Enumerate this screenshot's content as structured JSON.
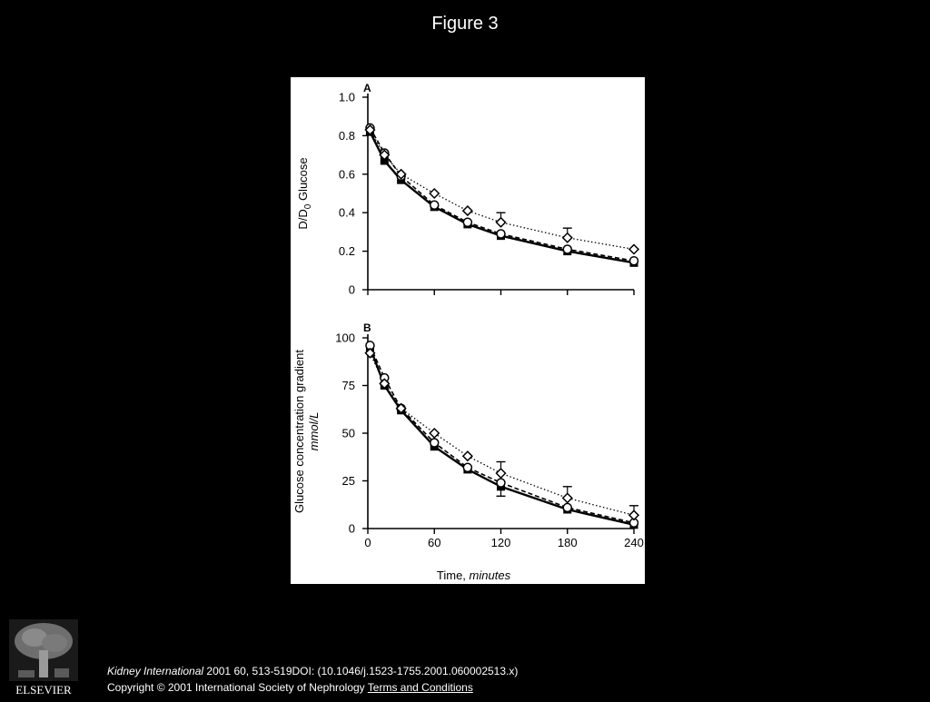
{
  "header": {
    "title": "Figure 3"
  },
  "footer": {
    "journal": "Kidney International",
    "citation_rest": " 2001 60, 513-519DOI: (10.1046/j.1523-1755.2001.060002513.x)",
    "copyright": "Copyright © 2001 International Society of Nephrology ",
    "terms_link": "Terms and Conditions",
    "publisher_logo_text": "ELSEVIER"
  },
  "colors": {
    "background": "#000000",
    "panel": "#ffffff",
    "ink": "#000000"
  },
  "chart_data": [
    {
      "type": "line",
      "panel_label": "A",
      "title": "",
      "xlabel": "",
      "ylabel": "D/D0 Glucose",
      "xlim": [
        0,
        240
      ],
      "ylim": [
        0,
        1.0
      ],
      "yticks": [
        "0",
        "0.2",
        "0.4",
        "0.6",
        "0.8",
        "1.0"
      ],
      "ytick_values": [
        0,
        0.2,
        0.4,
        0.6,
        0.8,
        1.0
      ],
      "xticks": [
        0,
        60,
        120,
        180,
        240
      ],
      "xtick_labels": [
        "",
        "",
        "",
        "",
        ""
      ],
      "grid": false,
      "x": [
        2,
        15,
        30,
        60,
        90,
        120,
        180,
        240
      ],
      "series": [
        {
          "style": "solid",
          "marker": "filled-square",
          "values": [
            0.82,
            0.67,
            0.57,
            0.43,
            0.34,
            0.28,
            0.2,
            0.14
          ],
          "error": [
            null,
            null,
            null,
            null,
            null,
            null,
            null,
            null
          ]
        },
        {
          "style": "dashed",
          "marker": "open-circle",
          "values": [
            0.84,
            0.71,
            0.59,
            0.44,
            0.35,
            0.29,
            0.21,
            0.15
          ],
          "error": [
            null,
            null,
            null,
            null,
            null,
            null,
            null,
            null
          ]
        },
        {
          "style": "dotted",
          "marker": "open-diamond",
          "values": [
            0.83,
            0.7,
            0.6,
            0.5,
            0.41,
            0.35,
            0.27,
            0.21
          ],
          "error": [
            null,
            null,
            null,
            null,
            null,
            0.05,
            0.05,
            null
          ]
        }
      ]
    },
    {
      "type": "line",
      "panel_label": "B",
      "title": "",
      "xlabel": "Time, minutes",
      "ylabel": "Glucose concentration gradient mmol/L",
      "xlim": [
        0,
        240
      ],
      "ylim": [
        0,
        100
      ],
      "yticks": [
        "0",
        "25",
        "50",
        "75",
        "100"
      ],
      "ytick_values": [
        0,
        25,
        50,
        75,
        100
      ],
      "xticks": [
        0,
        60,
        120,
        180,
        240
      ],
      "xtick_labels": [
        "0",
        "60",
        "120",
        "180",
        "240"
      ],
      "grid": false,
      "x": [
        2,
        15,
        30,
        60,
        90,
        120,
        180,
        240
      ],
      "series": [
        {
          "style": "solid",
          "marker": "filled-square",
          "values": [
            95,
            75,
            62,
            43,
            31,
            22,
            10,
            2
          ],
          "error": [
            null,
            null,
            null,
            null,
            null,
            5,
            null,
            null
          ]
        },
        {
          "style": "dashed",
          "marker": "open-circle",
          "values": [
            96,
            79,
            63,
            45,
            32,
            24,
            11,
            3
          ],
          "error": [
            null,
            null,
            null,
            null,
            null,
            null,
            null,
            null
          ]
        },
        {
          "style": "dotted",
          "marker": "open-diamond",
          "values": [
            92,
            76,
            63,
            50,
            38,
            29,
            16,
            7
          ],
          "error": [
            null,
            null,
            null,
            null,
            null,
            6,
            6,
            5
          ]
        }
      ]
    }
  ]
}
